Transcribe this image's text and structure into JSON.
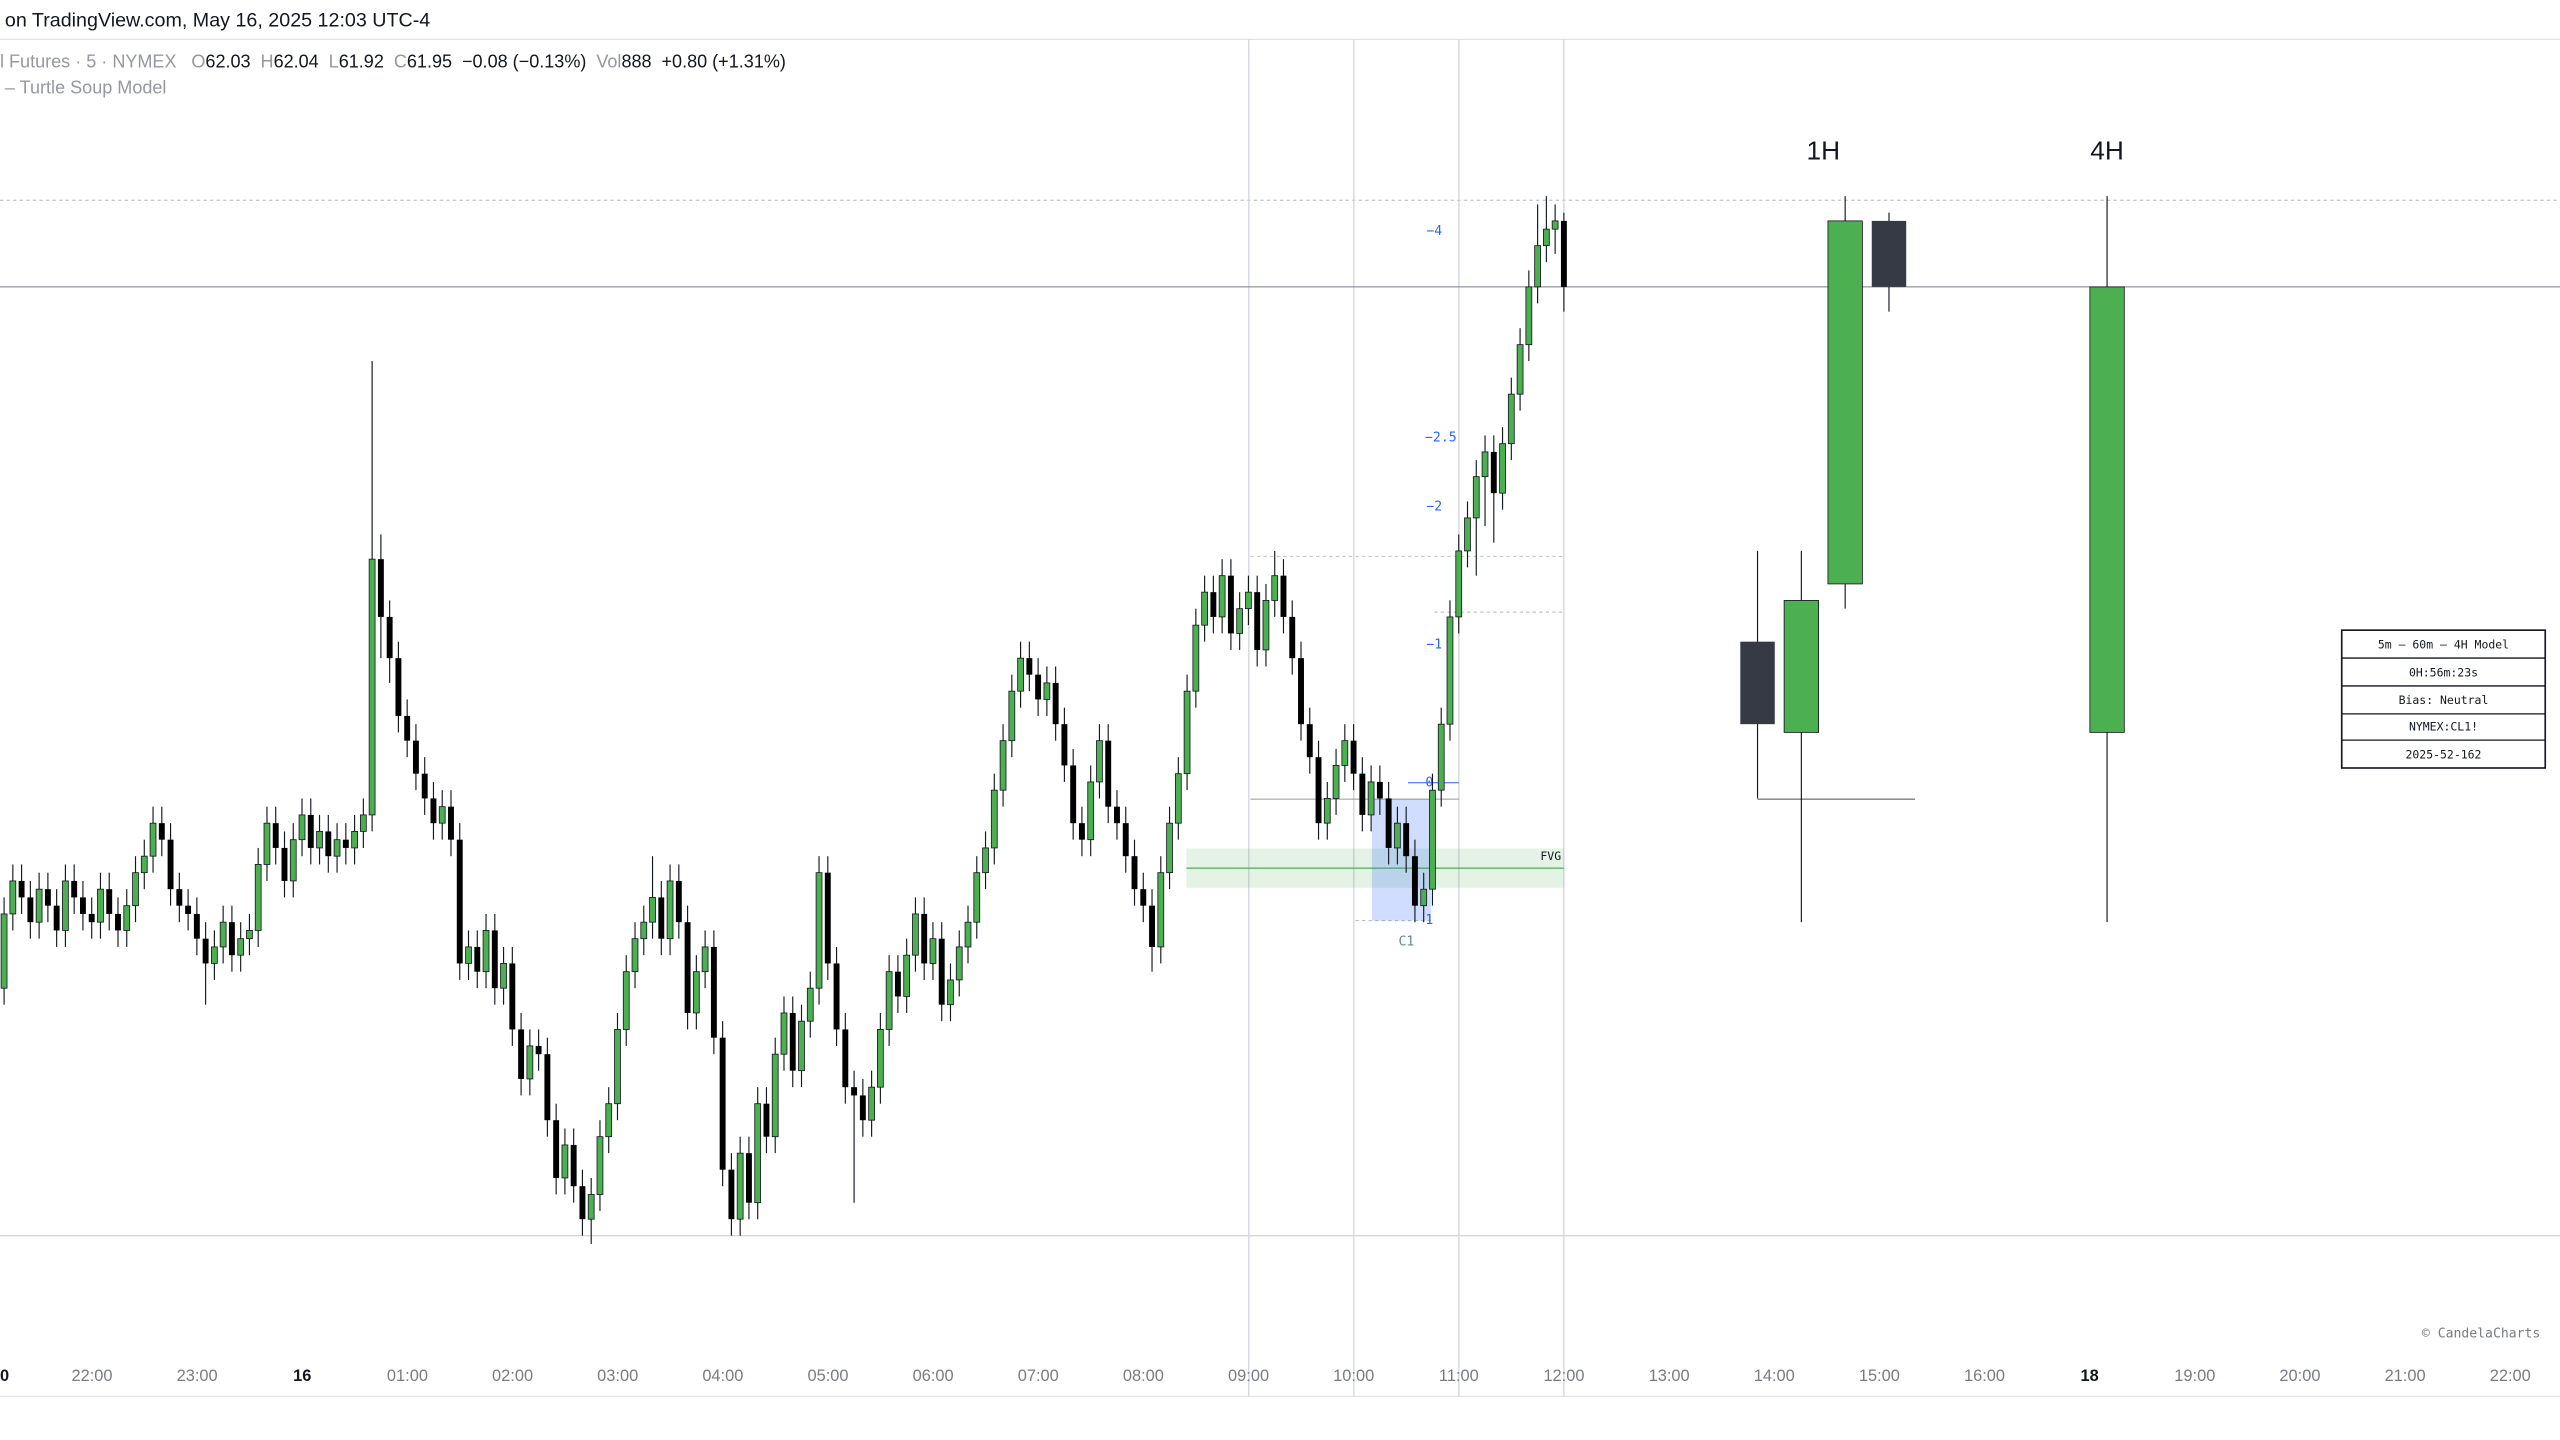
{
  "header": {
    "source": "on TradingView.com, May 16, 2025 12:03 UTC-4",
    "symbol": "l Futures · 5 · NYMEX",
    "ohlc": [
      {
        "label": "O",
        "value": 62.03
      },
      {
        "label": "H",
        "value": 62.04
      },
      {
        "label": "L",
        "value": 61.92
      },
      {
        "label": "C",
        "value": 61.95
      }
    ],
    "change": "−0.08 (−0.13%)",
    "volume_label": "Vol",
    "volume": 888,
    "volume_change": "+0.80 (+1.31%)",
    "indicator": "– Turtle Soup Model"
  },
  "chart_data": {
    "type": "candlestick",
    "up_color": "#4caf50",
    "down_color": "#000000",
    "ylim": [
      60.8,
      62.25
    ],
    "xtick_labels": [
      "0",
      "22:00",
      "23:00",
      "16",
      "01:00",
      "02:00",
      "03:00",
      "04:00",
      "05:00",
      "06:00",
      "07:00",
      "08:00",
      "09:00",
      "10:00",
      "11:00",
      "12:00",
      "13:00",
      "14:00",
      "15:00",
      "16:00",
      "18",
      "19:00",
      "20:00",
      "21:00",
      "22:00"
    ],
    "ohlc": [
      [
        61.1,
        61.21,
        61.08,
        61.19
      ],
      [
        61.19,
        61.25,
        61.17,
        61.23
      ],
      [
        61.23,
        61.25,
        61.19,
        61.21
      ],
      [
        61.21,
        61.23,
        61.16,
        61.18
      ],
      [
        61.18,
        61.24,
        61.16,
        61.22
      ],
      [
        61.22,
        61.24,
        61.18,
        61.2
      ],
      [
        61.2,
        61.22,
        61.15,
        61.17
      ],
      [
        61.17,
        61.25,
        61.15,
        61.23
      ],
      [
        61.23,
        61.25,
        61.19,
        61.21
      ],
      [
        61.21,
        61.23,
        61.17,
        61.19
      ],
      [
        61.19,
        61.21,
        61.16,
        61.18
      ],
      [
        61.18,
        61.24,
        61.16,
        61.22
      ],
      [
        61.22,
        61.24,
        61.17,
        61.19
      ],
      [
        61.19,
        61.21,
        61.15,
        61.17
      ],
      [
        61.17,
        61.22,
        61.15,
        61.2
      ],
      [
        61.2,
        61.26,
        61.18,
        61.24
      ],
      [
        61.24,
        61.28,
        61.22,
        61.26
      ],
      [
        61.26,
        61.32,
        61.24,
        61.3
      ],
      [
        61.3,
        61.32,
        61.26,
        61.28
      ],
      [
        61.28,
        61.3,
        61.2,
        61.22
      ],
      [
        61.22,
        61.24,
        61.18,
        61.2
      ],
      [
        61.2,
        61.22,
        61.17,
        61.19
      ],
      [
        61.19,
        61.21,
        61.14,
        61.16
      ],
      [
        61.16,
        61.18,
        61.08,
        61.13
      ],
      [
        61.13,
        61.17,
        61.11,
        61.15
      ],
      [
        61.15,
        61.2,
        61.13,
        61.18
      ],
      [
        61.18,
        61.2,
        61.12,
        61.14
      ],
      [
        61.14,
        61.18,
        61.12,
        61.16
      ],
      [
        61.16,
        61.19,
        61.14,
        61.17
      ],
      [
        61.17,
        61.27,
        61.15,
        61.25
      ],
      [
        61.25,
        61.32,
        61.23,
        61.3
      ],
      [
        61.3,
        61.32,
        61.25,
        61.27
      ],
      [
        61.27,
        61.29,
        61.21,
        61.23
      ],
      [
        61.23,
        61.3,
        61.21,
        61.28
      ],
      [
        61.28,
        61.33,
        61.26,
        61.31
      ],
      [
        61.31,
        61.33,
        61.25,
        61.27
      ],
      [
        61.27,
        61.31,
        61.25,
        61.29
      ],
      [
        61.29,
        61.31,
        61.24,
        61.26
      ],
      [
        61.26,
        61.3,
        61.24,
        61.28
      ],
      [
        61.28,
        61.3,
        61.25,
        61.27
      ],
      [
        61.27,
        61.31,
        61.25,
        61.29
      ],
      [
        61.29,
        61.33,
        61.27,
        61.31
      ],
      [
        61.31,
        61.86,
        61.29,
        61.62
      ],
      [
        61.62,
        61.65,
        61.5,
        61.55
      ],
      [
        61.55,
        61.57,
        61.47,
        61.5
      ],
      [
        61.5,
        61.52,
        61.41,
        61.43
      ],
      [
        61.43,
        61.45,
        61.38,
        61.4
      ],
      [
        61.4,
        61.42,
        61.34,
        61.36
      ],
      [
        61.36,
        61.38,
        61.31,
        61.33
      ],
      [
        61.33,
        61.35,
        61.28,
        61.3
      ],
      [
        61.3,
        61.34,
        61.28,
        61.32
      ],
      [
        61.32,
        61.34,
        61.26,
        61.28
      ],
      [
        61.28,
        61.3,
        61.11,
        61.13
      ],
      [
        61.13,
        61.17,
        61.11,
        61.15
      ],
      [
        61.15,
        61.17,
        61.1,
        61.12
      ],
      [
        61.12,
        61.19,
        61.1,
        61.17
      ],
      [
        61.17,
        61.19,
        61.08,
        61.1
      ],
      [
        61.1,
        61.15,
        61.08,
        61.13
      ],
      [
        61.13,
        61.15,
        61.03,
        61.05
      ],
      [
        61.05,
        61.07,
        60.97,
        60.99
      ],
      [
        60.99,
        61.05,
        60.97,
        61.03
      ],
      [
        61.03,
        61.05,
        61.0,
        61.02
      ],
      [
        61.02,
        61.04,
        60.92,
        60.94
      ],
      [
        60.94,
        60.96,
        60.85,
        60.87
      ],
      [
        60.87,
        60.93,
        60.85,
        60.91
      ],
      [
        60.91,
        60.93,
        60.84,
        60.86
      ],
      [
        60.86,
        60.88,
        60.8,
        60.82
      ],
      [
        60.82,
        60.87,
        60.79,
        60.85
      ],
      [
        60.85,
        60.94,
        60.83,
        60.92
      ],
      [
        60.92,
        60.98,
        60.9,
        60.96
      ],
      [
        60.96,
        61.07,
        60.94,
        61.05
      ],
      [
        61.05,
        61.14,
        61.03,
        61.12
      ],
      [
        61.12,
        61.18,
        61.1,
        61.16
      ],
      [
        61.16,
        61.2,
        61.14,
        61.18
      ],
      [
        61.18,
        61.26,
        61.16,
        61.21
      ],
      [
        61.21,
        61.23,
        61.14,
        61.16
      ],
      [
        61.16,
        61.25,
        61.14,
        61.23
      ],
      [
        61.23,
        61.25,
        61.16,
        61.18
      ],
      [
        61.18,
        61.2,
        61.05,
        61.07
      ],
      [
        61.07,
        61.14,
        61.05,
        61.12
      ],
      [
        61.12,
        61.17,
        61.1,
        61.15
      ],
      [
        61.15,
        61.17,
        61.02,
        61.04
      ],
      [
        61.04,
        61.06,
        60.86,
        60.88
      ],
      [
        60.88,
        60.9,
        60.8,
        60.82
      ],
      [
        60.82,
        60.92,
        60.8,
        60.9
      ],
      [
        60.9,
        60.92,
        60.82,
        60.84
      ],
      [
        60.84,
        60.98,
        60.82,
        60.96
      ],
      [
        60.96,
        60.98,
        60.9,
        60.92
      ],
      [
        60.92,
        61.04,
        60.9,
        61.02
      ],
      [
        61.02,
        61.09,
        61.0,
        61.07
      ],
      [
        61.07,
        61.09,
        60.98,
        61.0
      ],
      [
        61.0,
        61.08,
        60.98,
        61.06
      ],
      [
        61.06,
        61.12,
        61.04,
        61.1
      ],
      [
        61.1,
        61.26,
        61.08,
        61.24
      ],
      [
        61.24,
        61.26,
        61.11,
        61.13
      ],
      [
        61.13,
        61.15,
        61.03,
        61.05
      ],
      [
        61.05,
        61.07,
        60.96,
        60.98
      ],
      [
        60.98,
        61.0,
        60.84,
        60.97
      ],
      [
        60.97,
        60.99,
        60.92,
        60.94
      ],
      [
        60.94,
        61.0,
        60.92,
        60.98
      ],
      [
        60.98,
        61.07,
        60.96,
        61.05
      ],
      [
        61.05,
        61.14,
        61.03,
        61.12
      ],
      [
        61.12,
        61.14,
        61.07,
        61.09
      ],
      [
        61.09,
        61.16,
        61.07,
        61.14
      ],
      [
        61.14,
        61.21,
        61.12,
        61.19
      ],
      [
        61.19,
        61.21,
        61.11,
        61.13
      ],
      [
        61.13,
        61.18,
        61.11,
        61.16
      ],
      [
        61.16,
        61.18,
        61.06,
        61.08
      ],
      [
        61.08,
        61.13,
        61.06,
        61.11
      ],
      [
        61.11,
        61.17,
        61.09,
        61.15
      ],
      [
        61.15,
        61.2,
        61.13,
        61.18
      ],
      [
        61.18,
        61.26,
        61.16,
        61.24
      ],
      [
        61.24,
        61.29,
        61.22,
        61.27
      ],
      [
        61.27,
        61.36,
        61.25,
        61.34
      ],
      [
        61.34,
        61.42,
        61.32,
        61.4
      ],
      [
        61.4,
        61.48,
        61.38,
        61.46
      ],
      [
        61.46,
        61.52,
        61.44,
        61.5
      ],
      [
        61.5,
        61.52,
        61.46,
        61.48
      ],
      [
        61.48,
        61.5,
        61.43,
        61.45
      ],
      [
        61.45,
        61.49,
        61.43,
        61.47
      ],
      [
        61.47,
        61.49,
        61.4,
        61.42
      ],
      [
        61.42,
        61.44,
        61.35,
        61.37
      ],
      [
        61.37,
        61.39,
        61.28,
        61.3
      ],
      [
        61.3,
        61.32,
        61.26,
        61.28
      ],
      [
        61.28,
        61.37,
        61.26,
        61.35
      ],
      [
        61.35,
        61.42,
        61.33,
        61.4
      ],
      [
        61.4,
        61.42,
        61.3,
        61.32
      ],
      [
        61.32,
        61.34,
        61.28,
        61.3
      ],
      [
        61.3,
        61.32,
        61.24,
        61.26
      ],
      [
        61.26,
        61.28,
        61.2,
        61.22
      ],
      [
        61.22,
        61.24,
        61.18,
        61.2
      ],
      [
        61.2,
        61.22,
        61.12,
        61.15
      ],
      [
        61.15,
        61.26,
        61.13,
        61.24
      ],
      [
        61.24,
        61.32,
        61.22,
        61.3
      ],
      [
        61.3,
        61.38,
        61.28,
        61.36
      ],
      [
        61.36,
        61.48,
        61.34,
        61.46
      ],
      [
        61.46,
        61.56,
        61.44,
        61.54
      ],
      [
        61.54,
        61.6,
        61.52,
        61.58
      ],
      [
        61.58,
        61.6,
        61.53,
        61.55
      ],
      [
        61.55,
        61.62,
        61.53,
        61.6
      ],
      [
        61.6,
        61.62,
        61.51,
        61.53
      ],
      [
        61.53,
        61.58,
        61.51,
        61.56
      ],
      [
        61.56,
        61.6,
        61.54,
        61.58
      ],
      [
        61.58,
        61.6,
        61.49,
        61.51
      ],
      [
        61.51,
        61.59,
        61.49,
        61.57
      ],
      [
        61.57,
        61.63,
        61.55,
        61.6
      ],
      [
        61.6,
        61.62,
        61.53,
        61.55
      ],
      [
        61.55,
        61.57,
        61.48,
        61.5
      ],
      [
        61.5,
        61.52,
        61.4,
        61.42
      ],
      [
        61.42,
        61.44,
        61.36,
        61.38
      ],
      [
        61.38,
        61.4,
        61.28,
        61.3
      ],
      [
        61.3,
        61.35,
        61.28,
        61.33
      ],
      [
        61.33,
        61.39,
        61.31,
        61.37
      ],
      [
        61.37,
        61.42,
        61.35,
        61.4
      ],
      [
        61.4,
        61.42,
        61.34,
        61.36
      ],
      [
        61.36,
        61.38,
        61.29,
        61.31
      ],
      [
        61.31,
        61.37,
        61.29,
        61.35
      ],
      [
        61.35,
        61.37,
        61.31,
        61.33
      ],
      [
        61.33,
        61.35,
        61.25,
        61.27
      ],
      [
        61.27,
        61.32,
        61.25,
        61.3
      ],
      [
        61.3,
        61.32,
        61.24,
        61.26
      ],
      [
        61.26,
        61.28,
        61.18,
        61.2
      ],
      [
        61.2,
        61.24,
        61.18,
        61.22
      ],
      [
        61.22,
        61.36,
        61.2,
        61.34
      ],
      [
        61.34,
        61.44,
        61.32,
        61.42
      ],
      [
        61.42,
        61.57,
        61.4,
        61.55
      ],
      [
        61.55,
        61.65,
        61.53,
        61.63
      ],
      [
        61.63,
        61.69,
        61.61,
        61.67
      ],
      [
        61.67,
        61.74,
        61.6,
        61.72
      ],
      [
        61.72,
        61.77,
        61.66,
        61.75
      ],
      [
        61.75,
        61.77,
        61.64,
        61.7
      ],
      [
        61.7,
        61.78,
        61.68,
        61.76
      ],
      [
        61.76,
        61.84,
        61.74,
        61.82
      ],
      [
        61.82,
        61.9,
        61.8,
        61.88
      ],
      [
        61.88,
        61.97,
        61.86,
        61.95
      ],
      [
        61.95,
        62.05,
        61.93,
        62.0
      ],
      [
        62.0,
        62.06,
        61.98,
        62.02
      ],
      [
        62.02,
        62.05,
        61.99,
        62.03
      ],
      [
        62.03,
        62.04,
        61.92,
        61.95
      ]
    ],
    "higher_timeframes": [
      {
        "label": "1H",
        "down_color": "#363a45",
        "candles": [
          [
            61.52,
            61.63,
            61.33,
            61.42
          ],
          [
            61.41,
            61.63,
            61.18,
            61.57
          ],
          [
            61.59,
            62.06,
            61.56,
            62.03
          ],
          [
            62.03,
            62.04,
            61.92,
            61.95
          ]
        ]
      },
      {
        "label": "4H",
        "down_color": "#363a45",
        "candles": [
          [
            61.41,
            62.06,
            61.18,
            61.95
          ]
        ]
      }
    ],
    "fib_labels": [
      "−4",
      "−2.5",
      "−2",
      "−1",
      "0",
      "1"
    ],
    "fvg_label": "FVG",
    "candle_label": "C1",
    "info_table": [
      "5m – 60m – 4H Model",
      "0H:56m:23s",
      "Bias: Neutral",
      "NYMEX:CL1!",
      "2025-52-162"
    ],
    "watermark": "© CandelaCharts"
  }
}
